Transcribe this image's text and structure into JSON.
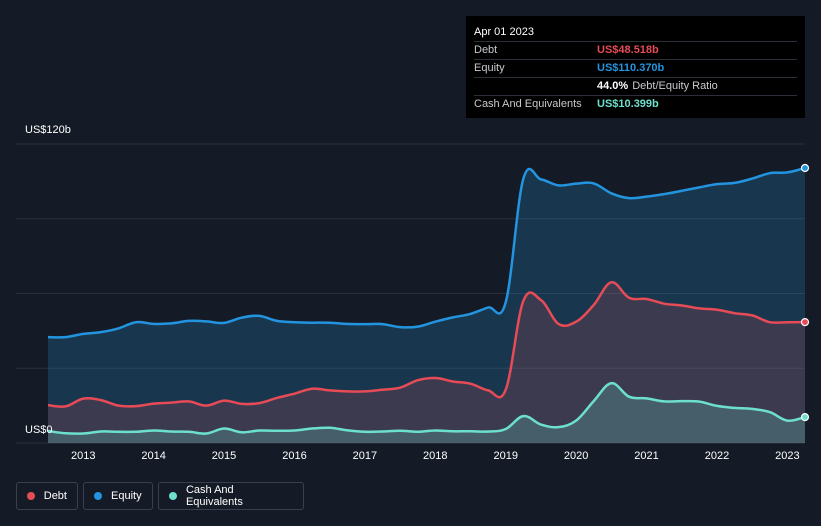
{
  "tooltip": {
    "date": "Apr 01 2023",
    "debt_label": "Debt",
    "debt_value": "US$48.518b",
    "equity_label": "Equity",
    "equity_value": "US$110.370b",
    "ratio_value": "44.0%",
    "ratio_label": "Debt/Equity Ratio",
    "cash_label": "Cash And Equivalents",
    "cash_value": "US$10.399b"
  },
  "colors": {
    "debt": "#e64b56",
    "equity": "#2394df",
    "cash": "#6de0cd",
    "background": "#151b26"
  },
  "legend": [
    {
      "label": "Debt",
      "color": "#e64b56"
    },
    {
      "label": "Equity",
      "color": "#2394df"
    },
    {
      "label": "Cash And Equivalents",
      "color": "#6de0cd"
    }
  ],
  "chart_data": {
    "type": "area",
    "y_top_label": "US$120b",
    "y_bottom_label": "US$0",
    "ylim": [
      0,
      120
    ],
    "xlim": [
      2012.5,
      2023.25
    ],
    "x_ticks": [
      "2013",
      "2014",
      "2015",
      "2016",
      "2017",
      "2018",
      "2019",
      "2020",
      "2021",
      "2022",
      "2023"
    ],
    "grid": true,
    "legend_position": "bottom-left",
    "series": [
      {
        "name": "Equity",
        "color": "#2394df",
        "points": [
          [
            2012.5,
            42.5
          ],
          [
            2012.75,
            42.5
          ],
          [
            2013.0,
            43.8
          ],
          [
            2013.25,
            44.5
          ],
          [
            2013.5,
            46.0
          ],
          [
            2013.75,
            48.5
          ],
          [
            2014.0,
            47.8
          ],
          [
            2014.25,
            48.0
          ],
          [
            2014.5,
            49.0
          ],
          [
            2014.75,
            48.8
          ],
          [
            2015.0,
            48.2
          ],
          [
            2015.25,
            50.3
          ],
          [
            2015.5,
            51.0
          ],
          [
            2015.75,
            49.0
          ],
          [
            2016.0,
            48.5
          ],
          [
            2016.25,
            48.3
          ],
          [
            2016.5,
            48.3
          ],
          [
            2016.75,
            47.8
          ],
          [
            2017.0,
            47.7
          ],
          [
            2017.25,
            47.7
          ],
          [
            2017.5,
            46.5
          ],
          [
            2017.75,
            46.7
          ],
          [
            2018.0,
            48.7
          ],
          [
            2018.25,
            50.4
          ],
          [
            2018.5,
            51.8
          ],
          [
            2018.75,
            54.4
          ],
          [
            2019.0,
            56.5
          ],
          [
            2019.25,
            106.0
          ],
          [
            2019.5,
            105.8
          ],
          [
            2019.75,
            103.4
          ],
          [
            2020.0,
            104.1
          ],
          [
            2020.25,
            104.2
          ],
          [
            2020.5,
            100.2
          ],
          [
            2020.75,
            98.3
          ],
          [
            2021.0,
            98.9
          ],
          [
            2021.25,
            99.9
          ],
          [
            2021.5,
            101.2
          ],
          [
            2021.75,
            102.6
          ],
          [
            2022.0,
            103.9
          ],
          [
            2022.25,
            104.4
          ],
          [
            2022.5,
            106.1
          ],
          [
            2022.75,
            108.3
          ],
          [
            2023.0,
            108.6
          ],
          [
            2023.25,
            110.37
          ]
        ]
      },
      {
        "name": "Debt",
        "color": "#e64b56",
        "points": [
          [
            2012.5,
            15.2
          ],
          [
            2012.75,
            14.7
          ],
          [
            2013.0,
            17.8
          ],
          [
            2013.25,
            17.2
          ],
          [
            2013.5,
            15.0
          ],
          [
            2013.75,
            14.8
          ],
          [
            2014.0,
            15.8
          ],
          [
            2014.25,
            16.2
          ],
          [
            2014.5,
            16.7
          ],
          [
            2014.75,
            15.0
          ],
          [
            2015.0,
            17.0
          ],
          [
            2015.25,
            15.7
          ],
          [
            2015.5,
            16.0
          ],
          [
            2015.75,
            18.1
          ],
          [
            2016.0,
            19.8
          ],
          [
            2016.25,
            21.8
          ],
          [
            2016.5,
            21.1
          ],
          [
            2016.75,
            20.7
          ],
          [
            2017.0,
            20.7
          ],
          [
            2017.25,
            21.4
          ],
          [
            2017.5,
            22.2
          ],
          [
            2017.75,
            25.2
          ],
          [
            2018.0,
            26.1
          ],
          [
            2018.25,
            24.7
          ],
          [
            2018.5,
            23.8
          ],
          [
            2018.75,
            21.1
          ],
          [
            2019.0,
            21.4
          ],
          [
            2019.25,
            57.0
          ],
          [
            2019.5,
            57.4
          ],
          [
            2019.75,
            47.8
          ],
          [
            2020.0,
            48.7
          ],
          [
            2020.25,
            55.4
          ],
          [
            2020.5,
            64.5
          ],
          [
            2020.75,
            58.3
          ],
          [
            2021.0,
            57.8
          ],
          [
            2021.25,
            55.9
          ],
          [
            2021.5,
            55.2
          ],
          [
            2021.75,
            54.0
          ],
          [
            2022.0,
            53.5
          ],
          [
            2022.25,
            52.1
          ],
          [
            2022.5,
            51.2
          ],
          [
            2022.75,
            48.5
          ],
          [
            2023.0,
            48.5
          ],
          [
            2023.25,
            48.518
          ]
        ]
      },
      {
        "name": "Cash And Equivalents",
        "color": "#6de0cd",
        "points": [
          [
            2012.5,
            4.8
          ],
          [
            2012.75,
            3.9
          ],
          [
            2013.0,
            3.8
          ],
          [
            2013.25,
            4.6
          ],
          [
            2013.5,
            4.5
          ],
          [
            2013.75,
            4.5
          ],
          [
            2014.0,
            5.0
          ],
          [
            2014.25,
            4.6
          ],
          [
            2014.5,
            4.5
          ],
          [
            2014.75,
            3.8
          ],
          [
            2015.0,
            5.8
          ],
          [
            2015.25,
            4.3
          ],
          [
            2015.5,
            5.0
          ],
          [
            2015.75,
            4.9
          ],
          [
            2016.0,
            5.0
          ],
          [
            2016.25,
            5.8
          ],
          [
            2016.5,
            6.1
          ],
          [
            2016.75,
            5.1
          ],
          [
            2017.0,
            4.5
          ],
          [
            2017.25,
            4.6
          ],
          [
            2017.5,
            4.9
          ],
          [
            2017.75,
            4.5
          ],
          [
            2018.0,
            5.0
          ],
          [
            2018.25,
            4.7
          ],
          [
            2018.5,
            4.7
          ],
          [
            2018.75,
            4.6
          ],
          [
            2019.0,
            5.6
          ],
          [
            2019.25,
            10.8
          ],
          [
            2019.5,
            7.4
          ],
          [
            2019.75,
            6.4
          ],
          [
            2020.0,
            9.0
          ],
          [
            2020.25,
            16.8
          ],
          [
            2020.5,
            24.0
          ],
          [
            2020.75,
            18.6
          ],
          [
            2021.0,
            17.9
          ],
          [
            2021.25,
            16.7
          ],
          [
            2021.5,
            16.8
          ],
          [
            2021.75,
            16.6
          ],
          [
            2022.0,
            14.9
          ],
          [
            2022.25,
            14.1
          ],
          [
            2022.5,
            13.7
          ],
          [
            2022.75,
            12.4
          ],
          [
            2023.0,
            9.0
          ],
          [
            2023.25,
            10.399
          ]
        ]
      }
    ]
  }
}
